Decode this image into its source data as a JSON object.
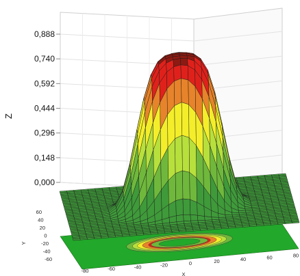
{
  "chart_data": {
    "type": "surface3d",
    "title": "",
    "z_label": "Z",
    "y_label": "Y",
    "x_label": "X",
    "z_ticks": [
      "0,000",
      "0,148",
      "0,296",
      "0,444",
      "0,592",
      "0,740",
      "0,888"
    ],
    "z_values": [
      0.0,
      0.148,
      0.296,
      0.444,
      0.592,
      0.74,
      0.888
    ],
    "y_ticks": [
      "60",
      "40",
      "20",
      "0",
      "-20",
      "-40",
      "-60"
    ],
    "x_ticks": [
      "-80",
      "-60",
      "-40",
      "-20",
      "0",
      "20",
      "40",
      "60",
      "80"
    ],
    "zlim": [
      0,
      0.95
    ],
    "grid": true,
    "color_bands": [
      {
        "from": 0.0,
        "to": 0.148,
        "color": "#3f9a3a"
      },
      {
        "from": 0.148,
        "to": 0.296,
        "color": "#6fb83c"
      },
      {
        "from": 0.296,
        "to": 0.444,
        "color": "#b7e03c"
      },
      {
        "from": 0.444,
        "to": 0.592,
        "color": "#f4ee2a"
      },
      {
        "from": 0.592,
        "to": 0.74,
        "color": "#e7832a"
      },
      {
        "from": 0.74,
        "to": 0.888,
        "color": "#e0211b"
      },
      {
        "from": 0.888,
        "to": 1.0,
        "color": "#8d1a12"
      }
    ],
    "floor_color": "#22a82a"
  }
}
